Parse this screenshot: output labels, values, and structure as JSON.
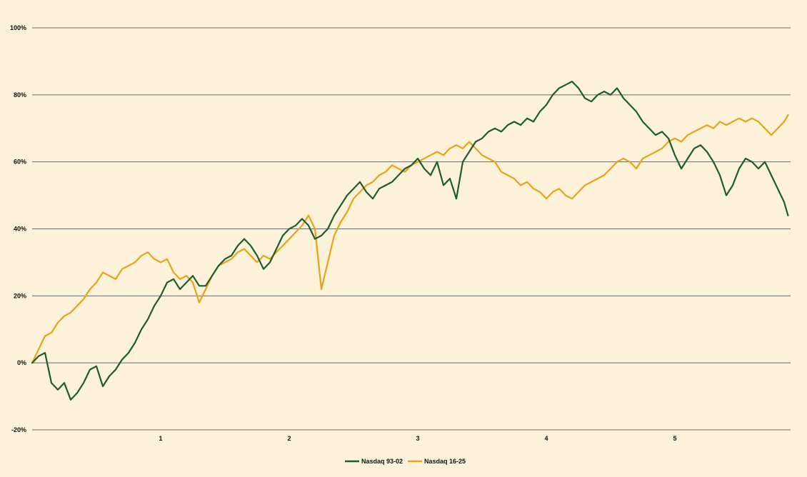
{
  "chart_data": {
    "type": "line",
    "title": "",
    "xlabel": "",
    "ylabel": "",
    "xlim": [
      0,
      5.9
    ],
    "ylim": [
      -20,
      100
    ],
    "x_ticks": [
      1,
      2,
      3,
      4,
      5
    ],
    "y_ticks": [
      -20,
      0,
      20,
      40,
      60,
      80,
      100
    ],
    "x_tick_labels": [
      "1",
      "2",
      "3",
      "4",
      "5"
    ],
    "y_tick_labels": [
      "-20%",
      "0%",
      "20%",
      "40%",
      "60%",
      "80%",
      "100%"
    ],
    "grid": "horizontal",
    "legend_position": "bottom-center",
    "series": [
      {
        "name": "Nasdaq 93-02",
        "color": "#1e5c30",
        "x": [
          0,
          0.05,
          0.1,
          0.15,
          0.2,
          0.25,
          0.3,
          0.35,
          0.4,
          0.45,
          0.5,
          0.55,
          0.6,
          0.65,
          0.7,
          0.75,
          0.8,
          0.85,
          0.9,
          0.95,
          1.0,
          1.05,
          1.1,
          1.15,
          1.2,
          1.25,
          1.3,
          1.35,
          1.4,
          1.45,
          1.5,
          1.55,
          1.6,
          1.65,
          1.7,
          1.75,
          1.8,
          1.85,
          1.9,
          1.95,
          2.0,
          2.05,
          2.1,
          2.15,
          2.2,
          2.25,
          2.3,
          2.35,
          2.4,
          2.45,
          2.5,
          2.55,
          2.6,
          2.65,
          2.7,
          2.75,
          2.8,
          2.85,
          2.9,
          2.95,
          3.0,
          3.05,
          3.1,
          3.15,
          3.2,
          3.25,
          3.3,
          3.35,
          3.4,
          3.45,
          3.5,
          3.55,
          3.6,
          3.65,
          3.7,
          3.75,
          3.8,
          3.85,
          3.9,
          3.95,
          4.0,
          4.05,
          4.1,
          4.15,
          4.2,
          4.25,
          4.3,
          4.35,
          4.4,
          4.45,
          4.5,
          4.55,
          4.6,
          4.65,
          4.7,
          4.75,
          4.8,
          4.85,
          4.9,
          4.95,
          5.0,
          5.05,
          5.1,
          5.15,
          5.2,
          5.25,
          5.3,
          5.35,
          5.4,
          5.45,
          5.5,
          5.55,
          5.6,
          5.65,
          5.7,
          5.75,
          5.8,
          5.85,
          5.88
        ],
        "values": [
          0,
          2,
          3,
          -6,
          -8,
          -6,
          -11,
          -9,
          -6,
          -2,
          -1,
          -7,
          -4,
          -2,
          1,
          3,
          6,
          10,
          13,
          17,
          20,
          24,
          25,
          22,
          24,
          26,
          23,
          23,
          26,
          29,
          31,
          32,
          35,
          37,
          35,
          32,
          28,
          30,
          34,
          38,
          40,
          41,
          43,
          41,
          37,
          38,
          40,
          44,
          47,
          50,
          52,
          54,
          51,
          49,
          52,
          53,
          54,
          56,
          58,
          59,
          61,
          58,
          56,
          60,
          53,
          55,
          49,
          60,
          63,
          66,
          67,
          69,
          70,
          69,
          71,
          72,
          71,
          73,
          72,
          75,
          77,
          80,
          82,
          83,
          84,
          82,
          79,
          78,
          80,
          81,
          80,
          82,
          79,
          77,
          75,
          72,
          70,
          68,
          69,
          67,
          62,
          58,
          61,
          64,
          65,
          63,
          60,
          56,
          50,
          53,
          58,
          61,
          60,
          58,
          60,
          56,
          52,
          48,
          44
        ]
      },
      {
        "name": "Nasdaq 16-25",
        "color": "#e8a317",
        "x": [
          0,
          0.05,
          0.1,
          0.15,
          0.2,
          0.25,
          0.3,
          0.35,
          0.4,
          0.45,
          0.5,
          0.55,
          0.6,
          0.65,
          0.7,
          0.75,
          0.8,
          0.85,
          0.9,
          0.95,
          1.0,
          1.05,
          1.1,
          1.15,
          1.2,
          1.25,
          1.3,
          1.35,
          1.4,
          1.45,
          1.5,
          1.55,
          1.6,
          1.65,
          1.7,
          1.75,
          1.8,
          1.85,
          1.9,
          1.95,
          2.0,
          2.05,
          2.1,
          2.15,
          2.2,
          2.25,
          2.3,
          2.35,
          2.4,
          2.45,
          2.5,
          2.55,
          2.6,
          2.65,
          2.7,
          2.75,
          2.8,
          2.85,
          2.9,
          2.95,
          3.0,
          3.05,
          3.1,
          3.15,
          3.2,
          3.25,
          3.3,
          3.35,
          3.4,
          3.45,
          3.5,
          3.55,
          3.6,
          3.65,
          3.7,
          3.75,
          3.8,
          3.85,
          3.9,
          3.95,
          4.0,
          4.05,
          4.1,
          4.15,
          4.2,
          4.25,
          4.3,
          4.35,
          4.4,
          4.45,
          4.5,
          4.55,
          4.6,
          4.65,
          4.7,
          4.75,
          4.8,
          4.85,
          4.9,
          4.95,
          5.0,
          5.05,
          5.1,
          5.15,
          5.2,
          5.25,
          5.3,
          5.35,
          5.4,
          5.45,
          5.5,
          5.55,
          5.6,
          5.65,
          5.7,
          5.75,
          5.8,
          5.85,
          5.88
        ],
        "values": [
          0,
          4,
          8,
          9,
          12,
          14,
          15,
          17,
          19,
          22,
          24,
          27,
          26,
          25,
          28,
          29,
          30,
          32,
          33,
          31,
          30,
          31,
          27,
          25,
          26,
          24,
          18,
          22,
          26,
          29,
          30,
          31,
          33,
          34,
          32,
          30,
          32,
          31,
          33,
          35,
          37,
          39,
          41,
          44,
          40,
          22,
          30,
          38,
          42,
          45,
          49,
          51,
          53,
          54,
          56,
          57,
          59,
          58,
          57,
          59,
          60,
          61,
          62,
          63,
          62,
          64,
          65,
          64,
          66,
          64,
          62,
          61,
          60,
          57,
          56,
          55,
          53,
          54,
          52,
          51,
          49,
          51,
          52,
          50,
          49,
          51,
          53,
          54,
          55,
          56,
          58,
          60,
          61,
          60,
          58,
          61,
          62,
          63,
          64,
          66,
          67,
          66,
          68,
          69,
          70,
          71,
          70,
          72,
          71,
          72,
          73,
          72,
          73,
          72,
          70,
          68,
          70,
          72,
          74
        ]
      }
    ]
  }
}
